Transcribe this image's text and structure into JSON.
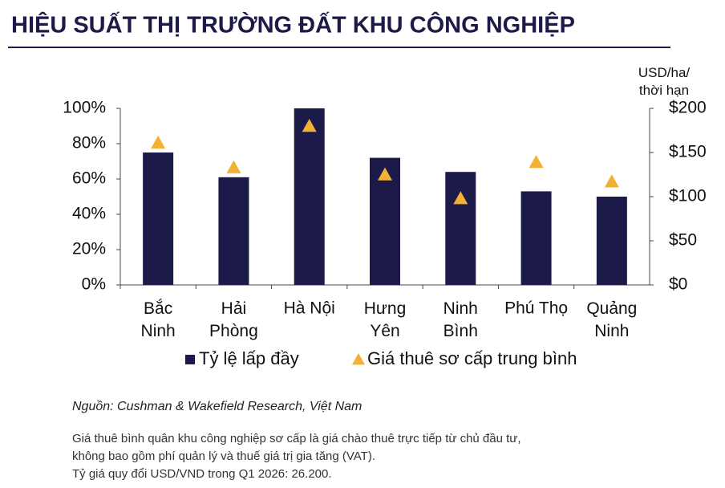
{
  "title": "HIỆU SUẤT THỊ TRƯỜNG ĐẤT KHU CÔNG NGHIỆP",
  "chart_data": {
    "type": "bar",
    "y2_label": "USD/ha/\nthời hạn",
    "categories": [
      "Bắc\nNinh",
      "Hải\nPhòng",
      "Hà Nội",
      "Hưng\nYên",
      "Ninh\nBình",
      "Phú Thọ",
      "Quảng\nNinh"
    ],
    "series": [
      {
        "name": "Tỷ lệ lấp đầy",
        "type": "bar",
        "color": "#1c1a48",
        "values": [
          75,
          61,
          100,
          72,
          64,
          53,
          50
        ]
      },
      {
        "name": "Giá thuê sơ cấp trung bình",
        "type": "scatter",
        "marker": "triangle",
        "axis": "y2",
        "color": "#f2b134",
        "values": [
          161,
          133,
          180,
          125,
          98,
          139,
          117
        ]
      }
    ],
    "ylim": [
      0,
      100
    ],
    "yticks": [
      {
        "value": 0,
        "label": "0%"
      },
      {
        "value": 20,
        "label": "20%"
      },
      {
        "value": 40,
        "label": "40%"
      },
      {
        "value": 60,
        "label": "60%"
      },
      {
        "value": 80,
        "label": "80%"
      },
      {
        "value": 100,
        "label": "100%"
      }
    ],
    "y2lim": [
      0,
      200
    ],
    "y2ticks": [
      {
        "value": 0,
        "label": "$0"
      },
      {
        "value": 50,
        "label": "$50"
      },
      {
        "value": 100,
        "label": "$100"
      },
      {
        "value": 150,
        "label": "$150"
      },
      {
        "value": 200,
        "label": "$200"
      }
    ],
    "grid": false
  },
  "source": "Nguồn: Cushman & Wakefield Research, Việt Nam",
  "notes": [
    "Giá thuê bình quân khu công nghiệp sơ cấp là giá chào thuê trực tiếp từ chủ đầu tư,",
    "không bao gồm phí quản lý và thuế giá trị gia tăng (VAT).",
    "Tỷ giá quy đổi USD/VND trong Q1 2026: 26.200."
  ]
}
